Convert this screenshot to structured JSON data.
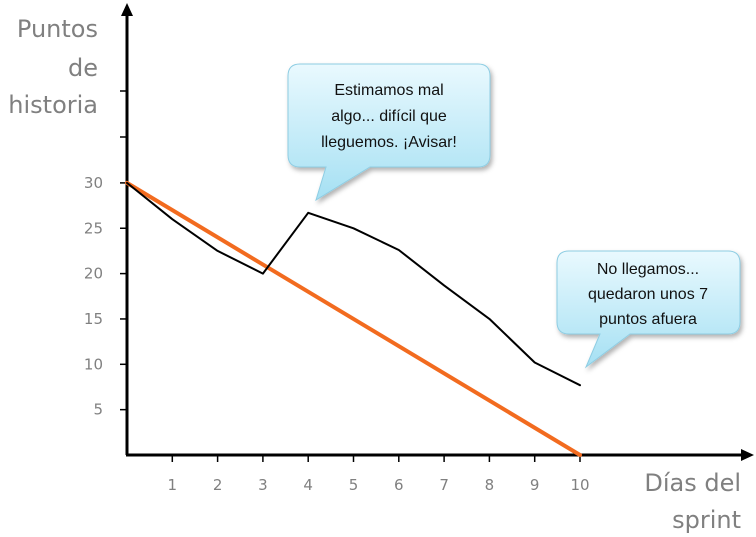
{
  "chart_data": {
    "type": "line",
    "ylabel": [
      "Puntos",
      "de",
      "historia"
    ],
    "xlabel": [
      "Días del",
      "sprint"
    ],
    "x_ticks": [
      "1",
      "2",
      "3",
      "4",
      "5",
      "6",
      "7",
      "8",
      "9",
      "10"
    ],
    "y_ticks": [
      "5",
      "10",
      "15",
      "20",
      "25",
      "30"
    ],
    "xlim": [
      0,
      10
    ],
    "ylim": [
      0,
      30
    ],
    "grid": false,
    "legend": "none",
    "series": [
      {
        "id": "ideal",
        "color": "#F26B1F",
        "x": [
          0,
          10
        ],
        "y": [
          30,
          0
        ]
      },
      {
        "id": "actual",
        "color": "#000000",
        "x": [
          0,
          1,
          2,
          3,
          4,
          5,
          6,
          7,
          8,
          9,
          10
        ],
        "y": [
          30,
          26,
          22.5,
          20,
          26.7,
          25,
          22.6,
          18.7,
          15,
          10.2,
          7.7
        ]
      }
    ],
    "annotations": [
      {
        "id": "callout-1",
        "lines": [
          "Estimamos mal",
          "algo... difícil que",
          "lleguemos. ¡Avisar!"
        ]
      },
      {
        "id": "callout-2",
        "lines": [
          "No llegamos...",
          "quedaron unos 7",
          "puntos afuera"
        ]
      }
    ]
  }
}
